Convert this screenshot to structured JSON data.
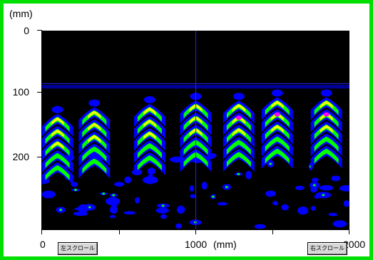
{
  "y_axis": {
    "unit": "(mm)",
    "ticks": [
      "0",
      "100",
      "200"
    ]
  },
  "x_axis": {
    "ticks": [
      "0",
      "1000",
      "2000"
    ],
    "unit": "(mm)"
  },
  "buttons": {
    "scroll_left": "左スクロール",
    "scroll_right": "右スクロール"
  },
  "colors": {
    "frame": "#00e000",
    "background": "#000000",
    "level1": "#0000ff",
    "level2": "#00ff00",
    "level3": "#ffff00",
    "level4": "#ff00ff",
    "cursor": "#2020ff"
  },
  "chart_data": {
    "type": "heatmap",
    "x_range_mm": [
      0,
      2000
    ],
    "depth_range_mm": [
      0,
      300
    ],
    "cursor": {
      "x_mm": 1000,
      "depth_mm": 80
    },
    "reflections_x_mm": [
      100,
      340,
      700,
      1000,
      1280,
      1530,
      1850
    ],
    "reflection_apex_depth_mm": [
      130,
      120,
      115,
      110,
      110,
      105,
      105
    ]
  }
}
